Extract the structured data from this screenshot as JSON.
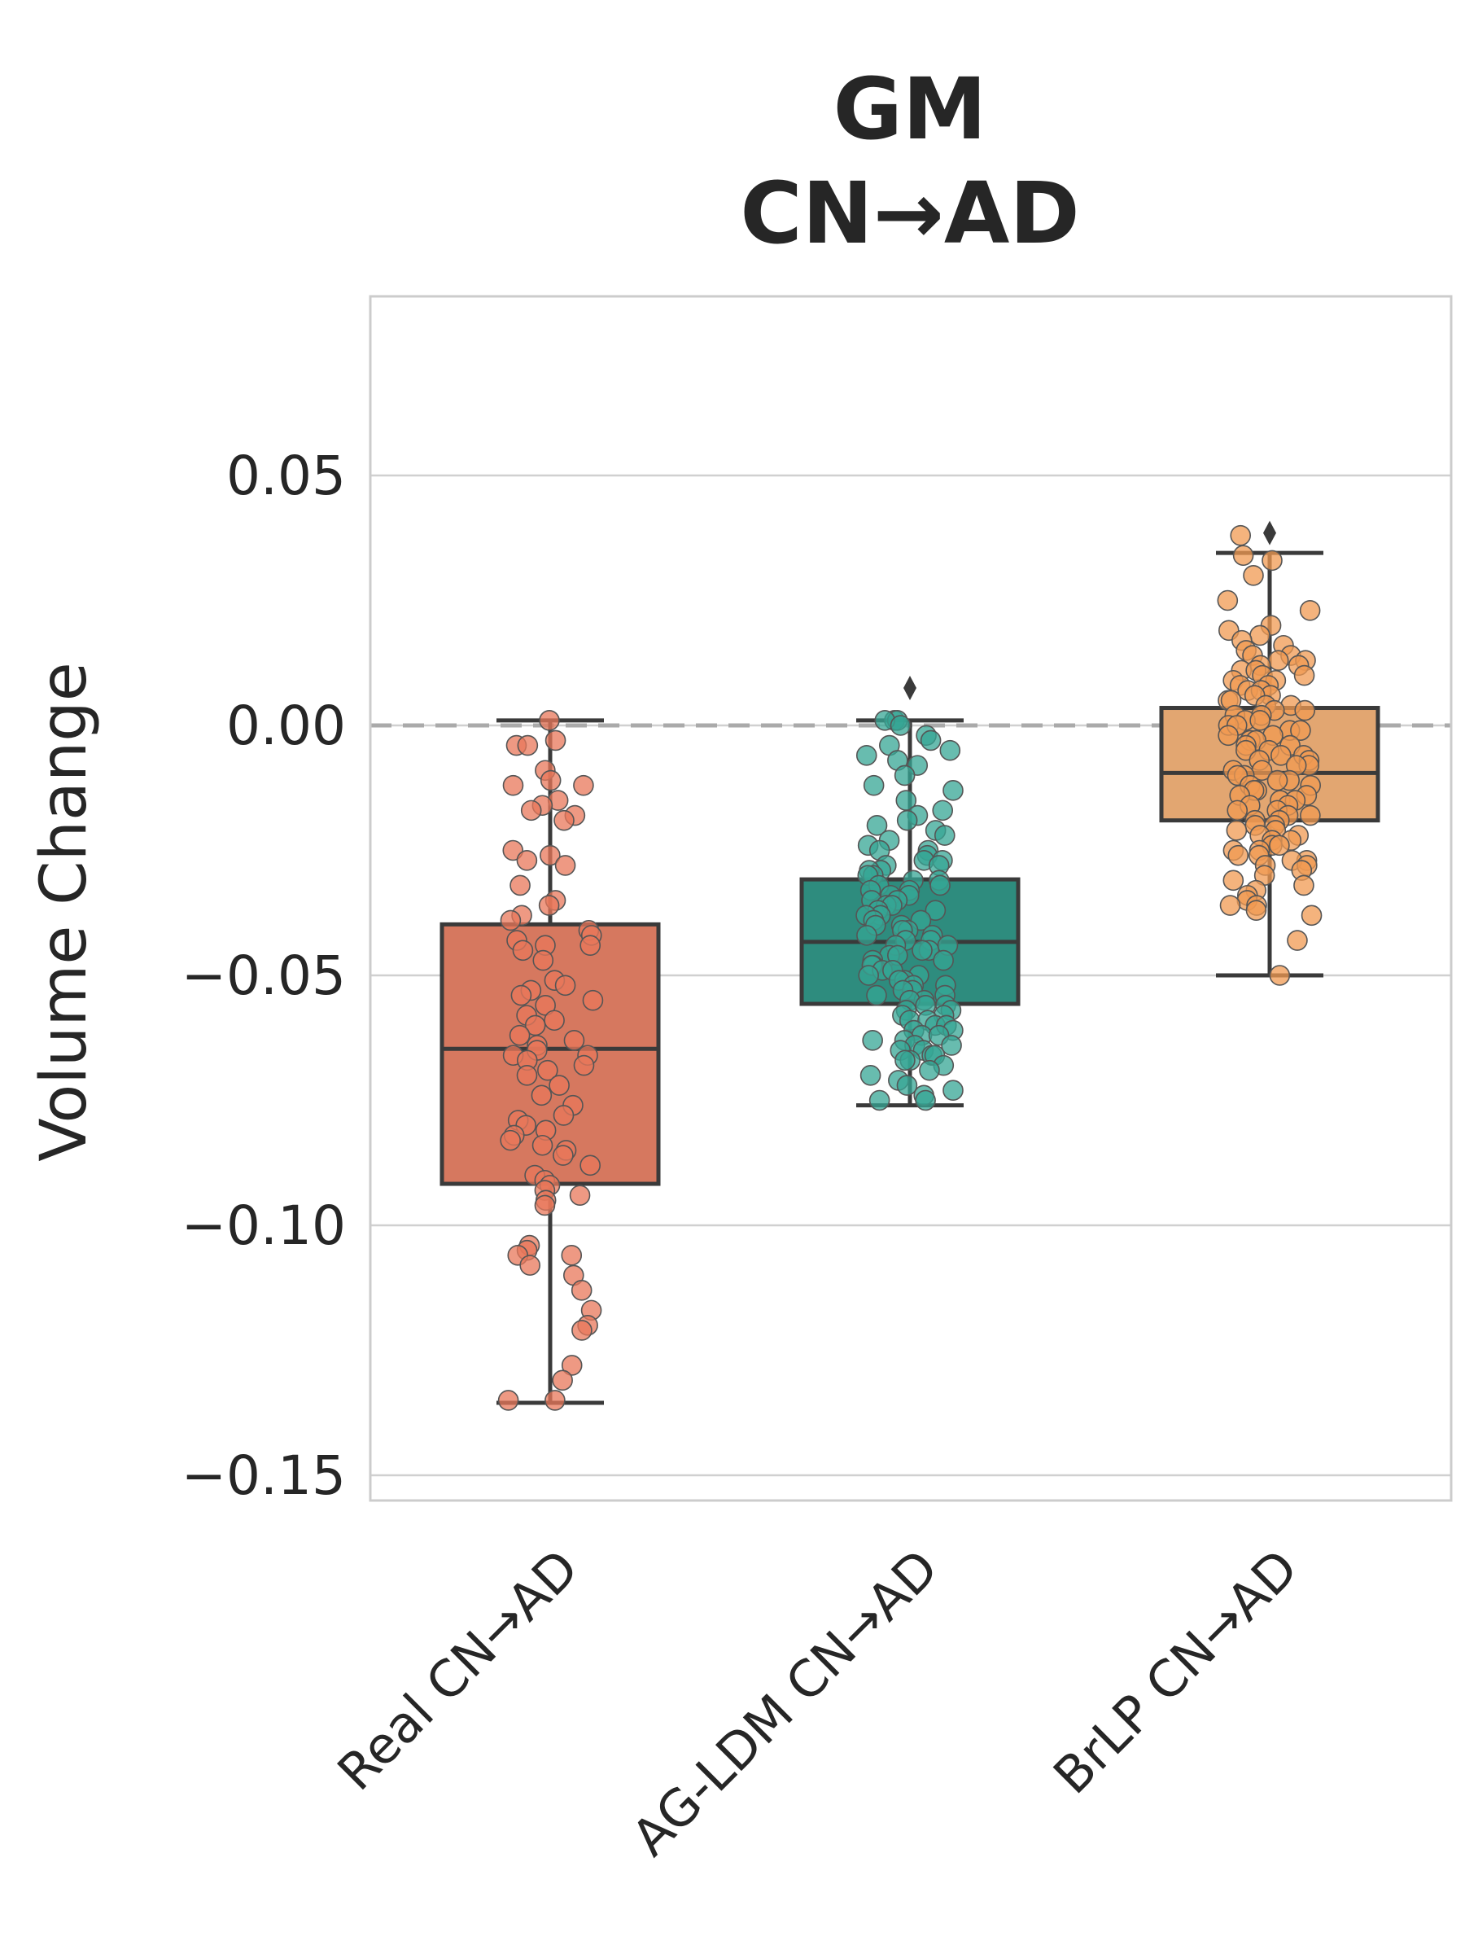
{
  "chart_data": {
    "type": "box",
    "title": [
      "GM",
      "CN→AD"
    ],
    "ylabel": "Volume Change",
    "xlabel": "",
    "ylim": [
      -0.155,
      0.086
    ],
    "yticks": [
      0.05,
      0.0,
      -0.05,
      -0.1,
      -0.15
    ],
    "ytick_labels": [
      "0.05",
      "0.00",
      "−0.05",
      "−0.10",
      "−0.15"
    ],
    "reference_line": 0.0,
    "grid": true,
    "categories": [
      "Real CN→AD",
      "AG-LDM CN→AD",
      "BrLP CN→AD"
    ],
    "colors": {
      "box": [
        "#d6785f",
        "#2e8c7e",
        "#e2a671"
      ],
      "point": [
        "#e8775a",
        "#35a594",
        "#f09a52"
      ],
      "edge": "#3a3a3a",
      "reference": "#aaaaaa",
      "grid": "#d0d0d0"
    },
    "boxes": [
      {
        "q1": -0.0917,
        "median": -0.0647,
        "q3": -0.0398,
        "whisker_low": -0.1355,
        "whisker_high": 0.001,
        "outliers": []
      },
      {
        "q1": -0.0557,
        "median": -0.0433,
        "q3": -0.0308,
        "whisker_low": -0.076,
        "whisker_high": 0.001,
        "outliers": [
          0.0075
        ]
      },
      {
        "q1": -0.019,
        "median": -0.0095,
        "q3": 0.0035,
        "whisker_low": -0.05,
        "whisker_high": 0.0345,
        "outliers": [
          0.0385
        ]
      }
    ],
    "points": [
      [
        0.001,
        -0.003,
        -0.004,
        -0.004,
        -0.009,
        -0.011,
        -0.012,
        -0.012,
        -0.015,
        -0.016,
        -0.017,
        -0.018,
        -0.019,
        -0.025,
        -0.026,
        -0.027,
        -0.028,
        -0.032,
        -0.035,
        -0.036,
        -0.038,
        -0.039,
        -0.041,
        -0.042,
        -0.043,
        -0.044,
        -0.044,
        -0.045,
        -0.047,
        -0.051,
        -0.052,
        -0.053,
        -0.054,
        -0.055,
        -0.056,
        -0.058,
        -0.059,
        -0.06,
        -0.062,
        -0.063,
        -0.064,
        -0.065,
        -0.066,
        -0.066,
        -0.067,
        -0.068,
        -0.069,
        -0.07,
        -0.072,
        -0.074,
        -0.076,
        -0.078,
        -0.079,
        -0.08,
        -0.081,
        -0.082,
        -0.083,
        -0.084,
        -0.085,
        -0.086,
        -0.088,
        -0.09,
        -0.091,
        -0.092,
        -0.093,
        -0.094,
        -0.095,
        -0.096,
        -0.104,
        -0.105,
        -0.106,
        -0.106,
        -0.108,
        -0.11,
        -0.113,
        -0.117,
        -0.12,
        -0.121,
        -0.128,
        -0.131,
        -0.135,
        -0.135
      ],
      [
        0.001,
        0.001,
        0.001,
        0.0,
        -0.002,
        -0.003,
        -0.004,
        -0.005,
        -0.006,
        -0.007,
        -0.008,
        -0.01,
        -0.012,
        -0.013,
        -0.015,
        -0.017,
        -0.018,
        -0.019,
        -0.02,
        -0.021,
        -0.022,
        -0.023,
        -0.024,
        -0.025,
        -0.025,
        -0.026,
        -0.027,
        -0.027,
        -0.028,
        -0.028,
        -0.029,
        -0.029,
        -0.03,
        -0.03,
        -0.031,
        -0.031,
        -0.032,
        -0.032,
        -0.033,
        -0.033,
        -0.034,
        -0.034,
        -0.035,
        -0.035,
        -0.036,
        -0.036,
        -0.037,
        -0.037,
        -0.038,
        -0.038,
        -0.039,
        -0.039,
        -0.04,
        -0.04,
        -0.041,
        -0.041,
        -0.042,
        -0.042,
        -0.043,
        -0.043,
        -0.044,
        -0.044,
        -0.045,
        -0.045,
        -0.046,
        -0.046,
        -0.047,
        -0.047,
        -0.048,
        -0.048,
        -0.049,
        -0.049,
        -0.05,
        -0.05,
        -0.051,
        -0.051,
        -0.052,
        -0.052,
        -0.053,
        -0.053,
        -0.054,
        -0.054,
        -0.055,
        -0.055,
        -0.056,
        -0.056,
        -0.057,
        -0.057,
        -0.058,
        -0.058,
        -0.059,
        -0.059,
        -0.06,
        -0.06,
        -0.061,
        -0.061,
        -0.062,
        -0.062,
        -0.063,
        -0.063,
        -0.064,
        -0.064,
        -0.065,
        -0.065,
        -0.066,
        -0.066,
        -0.067,
        -0.067,
        -0.068,
        -0.069,
        -0.07,
        -0.071,
        -0.072,
        -0.073,
        -0.074,
        -0.075,
        -0.075
      ],
      [
        0.038,
        0.034,
        0.033,
        0.03,
        0.025,
        0.023,
        0.02,
        0.019,
        0.018,
        0.017,
        0.016,
        0.015,
        0.014,
        0.014,
        0.013,
        0.013,
        0.012,
        0.012,
        0.011,
        0.011,
        0.01,
        0.01,
        0.009,
        0.009,
        0.008,
        0.008,
        0.007,
        0.007,
        0.006,
        0.006,
        0.005,
        0.005,
        0.004,
        0.004,
        0.003,
        0.003,
        0.002,
        0.002,
        0.001,
        0.001,
        0.0,
        0.0,
        -0.001,
        -0.001,
        -0.002,
        -0.002,
        -0.003,
        -0.003,
        -0.004,
        -0.004,
        -0.005,
        -0.005,
        -0.006,
        -0.006,
        -0.007,
        -0.007,
        -0.008,
        -0.008,
        -0.009,
        -0.009,
        -0.01,
        -0.01,
        -0.011,
        -0.011,
        -0.012,
        -0.012,
        -0.013,
        -0.013,
        -0.014,
        -0.014,
        -0.015,
        -0.015,
        -0.016,
        -0.016,
        -0.017,
        -0.017,
        -0.018,
        -0.018,
        -0.019,
        -0.019,
        -0.02,
        -0.02,
        -0.021,
        -0.021,
        -0.022,
        -0.022,
        -0.023,
        -0.023,
        -0.024,
        -0.024,
        -0.025,
        -0.025,
        -0.026,
        -0.026,
        -0.027,
        -0.027,
        -0.028,
        -0.028,
        -0.029,
        -0.03,
        -0.031,
        -0.032,
        -0.033,
        -0.034,
        -0.035,
        -0.036,
        -0.036,
        -0.037,
        -0.038,
        -0.043,
        -0.05
      ]
    ]
  }
}
